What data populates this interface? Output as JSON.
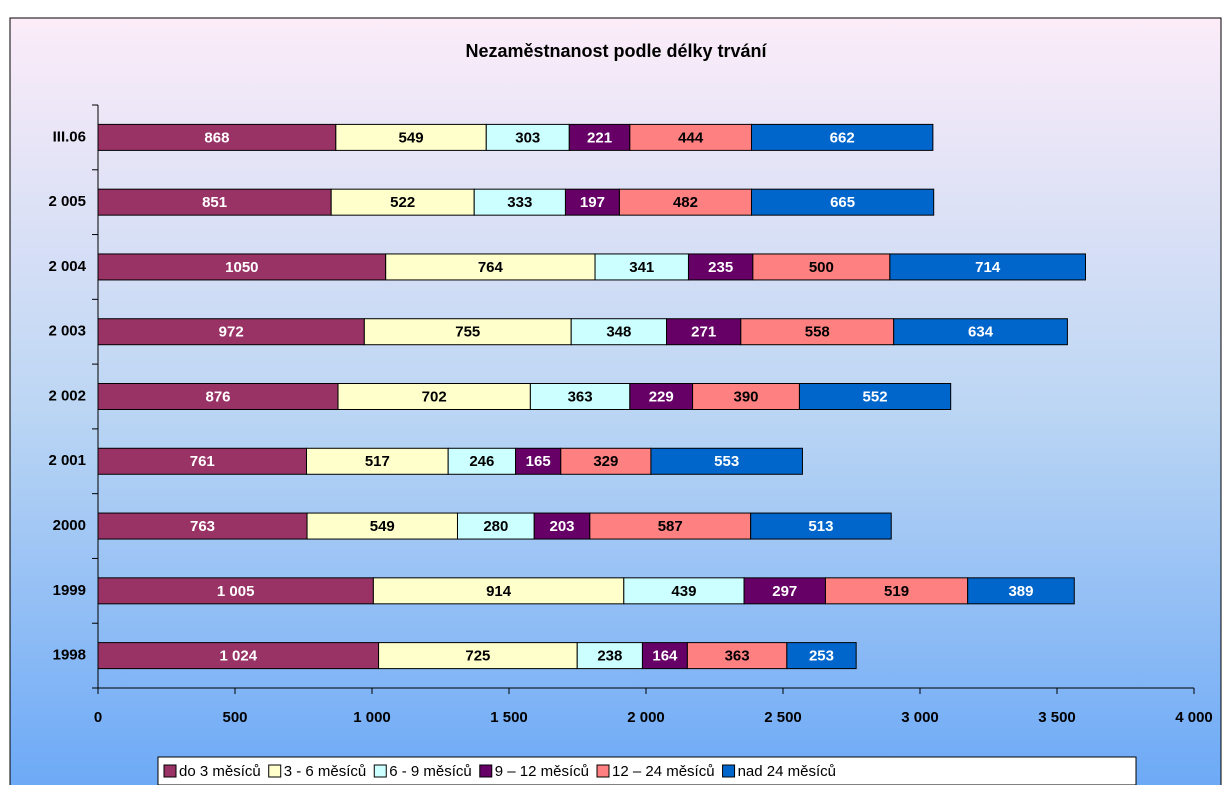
{
  "chart_data": {
    "type": "stacked_barh",
    "title": "Nezaměstnanost podle délky trvání",
    "categories": [
      "III.06",
      "2 005",
      "2 004",
      "2 003",
      "2 002",
      "2 001",
      "2000",
      "1999",
      "1998"
    ],
    "series": [
      {
        "name": "do 3 měsíců",
        "color": "#993366",
        "values": [
          868,
          851,
          1050,
          972,
          876,
          761,
          763,
          1005,
          1024
        ],
        "value_labels": [
          "868",
          "851",
          "1050",
          "972",
          "876",
          "761",
          "763",
          "1 005",
          "1 024"
        ]
      },
      {
        "name": "3 -  6 měsíců",
        "color": "#ffffcc",
        "values": [
          549,
          522,
          764,
          755,
          702,
          517,
          549,
          914,
          725
        ]
      },
      {
        "name": "6 -  9 měsíců",
        "color": "#ccffff",
        "values": [
          303,
          333,
          341,
          348,
          363,
          246,
          280,
          439,
          238
        ]
      },
      {
        "name": "9 – 12 měsíců",
        "color": "#660066",
        "values": [
          221,
          197,
          235,
          271,
          229,
          165,
          203,
          297,
          164
        ]
      },
      {
        "name": "12 – 24 měsíců",
        "color": "#ff8080",
        "values": [
          444,
          482,
          500,
          558,
          390,
          329,
          587,
          519,
          363
        ]
      },
      {
        "name": "nad 24 měsíců",
        "color": "#0066cc",
        "values": [
          662,
          665,
          714,
          634,
          552,
          553,
          513,
          389,
          253
        ]
      }
    ],
    "xlim": [
      0,
      4000
    ],
    "xticks": [
      0,
      500,
      {
        "value": 1000,
        "label": "1 000"
      },
      {
        "value": 1500,
        "label": "1 500"
      },
      {
        "value": 2000,
        "label": "2 000"
      },
      {
        "value": 2500,
        "label": "2 500"
      },
      {
        "value": 3000,
        "label": "3 000"
      },
      {
        "value": 3500,
        "label": "3 500"
      },
      {
        "value": 4000,
        "label": "4 000"
      }
    ],
    "legend": "bottom"
  }
}
